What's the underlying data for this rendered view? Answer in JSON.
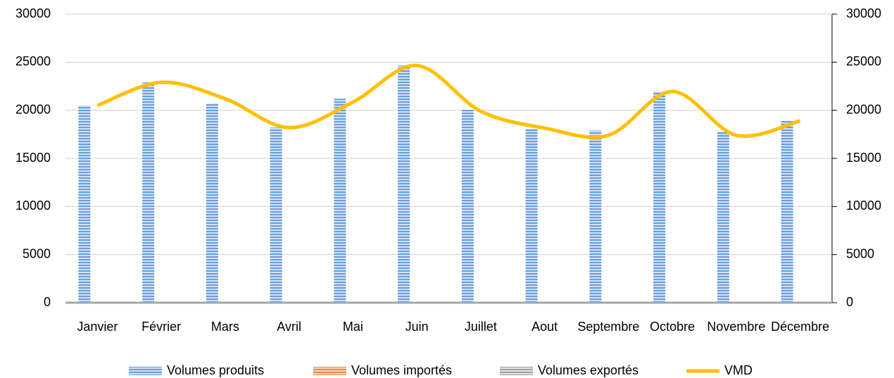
{
  "chart_data": {
    "type": "bar_line",
    "categories": [
      "Janvier",
      "Février",
      "Mars",
      "Avril",
      "Mai",
      "Juin",
      "Juillet",
      "Aout",
      "Septembre",
      "Octobre",
      "Novembre",
      "Décembre"
    ],
    "series": [
      {
        "name": "Volumes produits",
        "type": "bar",
        "color": "#6a9fdc",
        "values": [
          20500,
          22900,
          20700,
          18200,
          21200,
          24650,
          20050,
          18070,
          17900,
          21950,
          17800,
          18900
        ]
      },
      {
        "name": "Volumes importés",
        "type": "bar",
        "color": "#f08a4b",
        "values": [
          0,
          0,
          0,
          0,
          0,
          0,
          0,
          0,
          0,
          0,
          0,
          0
        ]
      },
      {
        "name": "Volumes exportés",
        "type": "bar",
        "color": "#a0a0a0",
        "values": [
          0,
          0,
          0,
          0,
          0,
          0,
          0,
          0,
          0,
          0,
          0,
          0
        ]
      },
      {
        "name": "VMD",
        "type": "line",
        "axis": "y2",
        "color": "#ffc000",
        "values": [
          20500,
          22900,
          21200,
          18200,
          20850,
          24650,
          19900,
          18150,
          17400,
          21950,
          17400,
          18900
        ]
      }
    ],
    "ylim": [
      0,
      30000
    ],
    "yticks": [
      0,
      5000,
      10000,
      15000,
      20000,
      25000,
      30000
    ],
    "y2lim": [
      0,
      30000
    ],
    "y2ticks": [
      0,
      5000,
      10000,
      15000,
      20000,
      25000,
      30000
    ],
    "grid": true,
    "legend": "bottom"
  }
}
